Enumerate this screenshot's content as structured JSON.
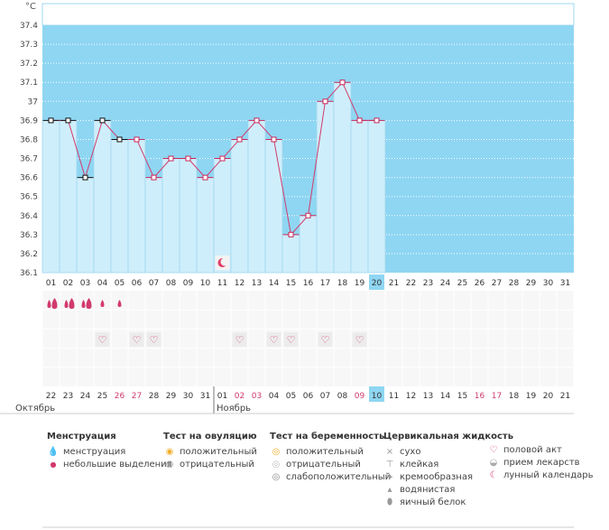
{
  "y_unit": "°C",
  "chart_data": {
    "type": "line",
    "ylim": [
      36.1,
      37.4
    ],
    "y_ticks": [
      "37.4",
      "37.3",
      "37.2",
      "37.1",
      "37",
      "36.9",
      "36.8",
      "36.7",
      "36.6",
      "36.5",
      "36.4",
      "36.3",
      "36.2",
      "36.1"
    ],
    "cycle_days": [
      "01",
      "02",
      "03",
      "04",
      "05",
      "06",
      "07",
      "08",
      "09",
      "10",
      "11",
      "12",
      "13",
      "14",
      "15",
      "16",
      "17",
      "18",
      "19",
      "20",
      "21",
      "22",
      "23",
      "24",
      "25",
      "26",
      "27",
      "28",
      "29",
      "30",
      "31"
    ],
    "current_cycle_day": "20",
    "temperatures": [
      36.9,
      36.9,
      36.6,
      36.9,
      36.8,
      36.8,
      36.6,
      36.7,
      36.7,
      36.6,
      36.7,
      36.8,
      36.9,
      36.8,
      36.3,
      36.4,
      37.0,
      37.1,
      36.9,
      36.9
    ],
    "black_markers": [
      true,
      true,
      true,
      true,
      true,
      false,
      false,
      false,
      false,
      false,
      false,
      false,
      false,
      false,
      false,
      false,
      false,
      false,
      false,
      false
    ],
    "moon_day": "11",
    "grid": true
  },
  "symbols": {
    "heavy_menstruation_days": [
      1,
      2,
      3
    ],
    "light_discharge_days": [
      4,
      5
    ],
    "intercourse_days": [
      4,
      6,
      7,
      12,
      14,
      15,
      17,
      19
    ]
  },
  "calendar": {
    "dates": [
      "22",
      "23",
      "24",
      "25",
      "26",
      "27",
      "28",
      "29",
      "30",
      "31",
      "01",
      "02",
      "03",
      "04",
      "05",
      "06",
      "07",
      "08",
      "09",
      "10",
      "11",
      "12",
      "13",
      "14",
      "15",
      "16",
      "17",
      "18",
      "19",
      "20",
      "21"
    ],
    "weekend_indices": [
      4,
      5,
      11,
      12,
      18,
      25,
      26
    ],
    "today_index": 19,
    "month1": "Октябрь",
    "month2": "Ноябрь"
  },
  "legend": {
    "menstruation": {
      "title": "Менструация",
      "items": [
        "менструация",
        "небольшие выделения"
      ]
    },
    "ovulation_test": {
      "title": "Тест на овуляцию",
      "items": [
        "положительный",
        "отрицательный"
      ]
    },
    "pregnancy_test": {
      "title": "Тест на беременность",
      "items": [
        "положительный",
        "отрицательный",
        "слабоположительный"
      ]
    },
    "cervical_fluid": {
      "title": "Цервикальная жидкость",
      "items": [
        "сухо",
        "клейкая",
        "кремообразная",
        "водянистая",
        "яичный белок"
      ]
    },
    "other": {
      "items": [
        "половой акт",
        "прием лекарств",
        "лунный календарь"
      ]
    }
  },
  "colors": {
    "plot_bg": "#8fd6f2",
    "bar_fill": "#cfeefb",
    "bar_stroke": "#9fd8f0",
    "line": "#d23a6c",
    "marker_stroke": "#c8285a",
    "weekend_text": "#d23a6c",
    "today_bg": "#8fd6f2"
  }
}
